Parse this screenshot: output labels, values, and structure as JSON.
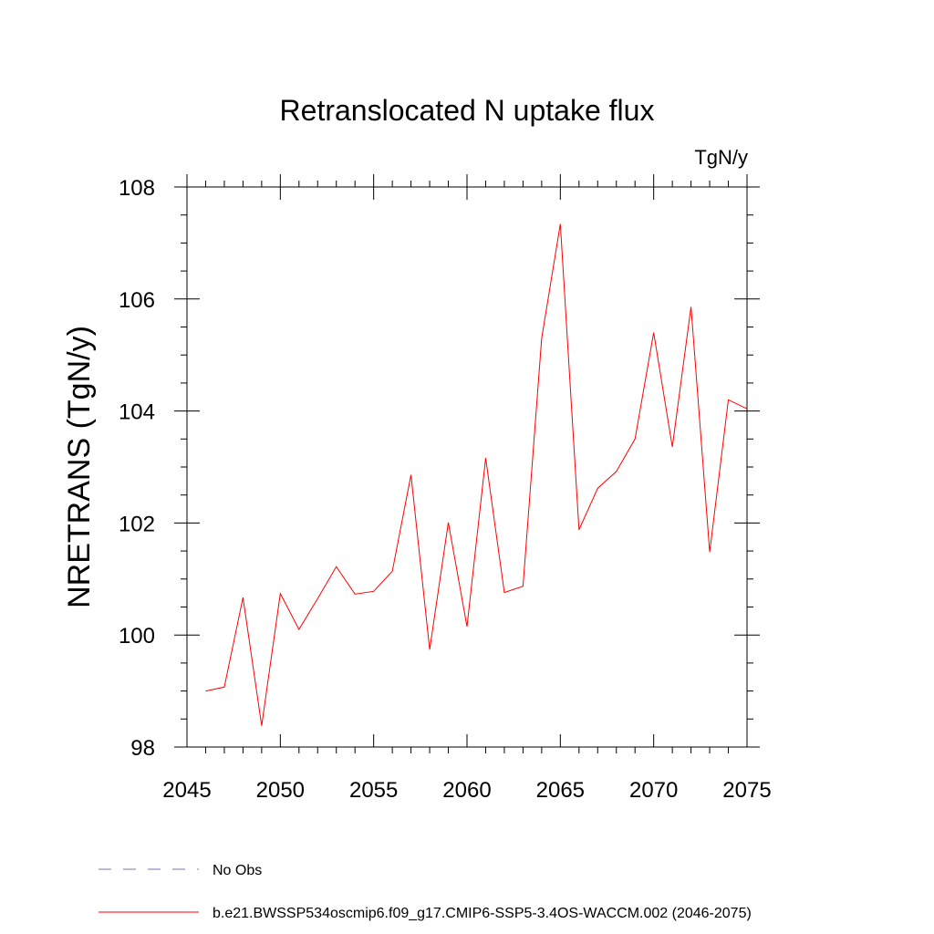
{
  "chart_data": {
    "type": "line",
    "title": "Retranslocated N uptake flux",
    "units_label": "TgN/y",
    "xlabel": "",
    "ylabel": "NRETRANS  (TgN/y)",
    "xlim": [
      2045,
      2075
    ],
    "ylim": [
      98,
      108
    ],
    "xticks": [
      2045,
      2050,
      2055,
      2060,
      2065,
      2070,
      2075
    ],
    "yticks": [
      98,
      100,
      102,
      104,
      106,
      108
    ],
    "series": [
      {
        "name": "b.e21.BWSSP534oscmip6.f09_g17.CMIP6-SSP5-3.4OS-WACCM.002 (2046-2075)",
        "color": "#ff0000",
        "x": [
          2046,
          2047,
          2048,
          2049,
          2050,
          2051,
          2052,
          2053,
          2054,
          2055,
          2056,
          2057,
          2058,
          2059,
          2060,
          2061,
          2062,
          2063,
          2064,
          2065,
          2066,
          2067,
          2068,
          2069,
          2070,
          2071,
          2072,
          2073,
          2074,
          2075
        ],
        "y": [
          99.0,
          99.07,
          100.67,
          98.38,
          100.74,
          100.1,
          100.65,
          101.22,
          100.73,
          100.78,
          101.14,
          102.86,
          99.74,
          102.01,
          100.15,
          103.16,
          100.76,
          100.87,
          105.3,
          107.34,
          101.88,
          102.62,
          102.92,
          103.5,
          105.4,
          103.36,
          105.86,
          101.48,
          104.2,
          104.04
        ]
      }
    ],
    "legend": [
      {
        "label": "No Obs",
        "color": "#7b6fb0",
        "style": "dashed"
      },
      {
        "label": "b.e21.BWSSP534oscmip6.f09_g17.CMIP6-SSP5-3.4OS-WACCM.002 (2046-2075)",
        "color": "#ff0000",
        "style": "solid"
      }
    ]
  }
}
